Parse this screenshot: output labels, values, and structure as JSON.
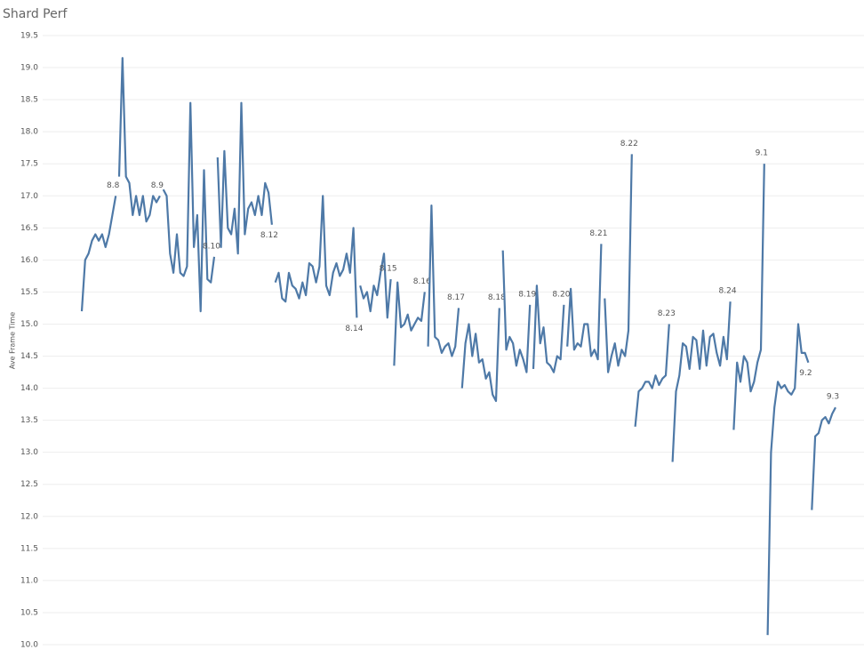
{
  "chart_data": {
    "type": "line",
    "title": "Shard Perf",
    "y_label": "Ave Frame Time",
    "color": "#4e79a7",
    "grid": true,
    "ylim": [
      10,
      19.5
    ],
    "yticks": [
      {
        "value": 10,
        "label": "10.0"
      },
      10.5,
      {
        "value": 11,
        "label": "11.0"
      },
      11.5,
      {
        "value": 12,
        "label": "12.0"
      },
      12.5,
      {
        "value": 13,
        "label": "13.0"
      },
      13.5,
      {
        "value": 14,
        "label": "14.0"
      },
      14.5,
      {
        "value": 15,
        "label": "15.0"
      },
      15.5,
      {
        "value": 16,
        "label": "16.0"
      },
      16.5,
      {
        "value": 17,
        "label": "17.0"
      },
      17.5,
      {
        "value": 18,
        "label": "18.0"
      },
      18.5,
      {
        "value": 19,
        "label": "19.0"
      },
      19.5
    ],
    "series": [
      {
        "name": "8.8",
        "values": [
          15.2,
          16.0,
          16.1,
          16.3,
          16.4,
          16.3,
          16.4,
          16.2,
          16.4,
          16.7,
          17.0
        ]
      },
      {
        "name": "8.9",
        "values": [
          17.3,
          19.15,
          17.3,
          17.2,
          16.7,
          17.0,
          16.7,
          17.0,
          16.6,
          16.7,
          17.0,
          16.9,
          17.0
        ]
      },
      {
        "name": "8.10",
        "values": [
          17.1,
          17.0,
          16.1,
          15.8,
          16.4,
          15.8,
          15.75,
          15.9,
          18.45,
          16.2,
          16.7,
          15.2,
          17.4,
          15.7,
          15.65,
          16.05
        ]
      },
      {
        "name": "8.12",
        "values": [
          17.6,
          16.2,
          17.7,
          16.5,
          16.4,
          16.8,
          16.1,
          18.45,
          16.4,
          16.8,
          16.9,
          16.7,
          17.0,
          16.7,
          17.2,
          17.05,
          16.55
        ]
      },
      {
        "name": "8.14",
        "values": [
          15.65,
          15.8,
          15.4,
          15.35,
          15.8,
          15.6,
          15.55,
          15.4,
          15.65,
          15.45,
          15.95,
          15.9,
          15.65,
          15.9,
          17.0,
          15.6,
          15.45,
          15.8,
          15.95,
          15.75,
          15.85,
          16.1,
          15.8,
          16.5,
          15.1
        ]
      },
      {
        "name": "8.15",
        "values": [
          15.6,
          15.4,
          15.5,
          15.2,
          15.6,
          15.45,
          15.8,
          16.1,
          15.1,
          15.7
        ]
      },
      {
        "name": "8.16",
        "values": [
          14.35,
          15.65,
          14.95,
          15.0,
          15.15,
          14.9,
          15.0,
          15.1,
          15.05,
          15.5
        ]
      },
      {
        "name": "8.17",
        "values": [
          14.65,
          16.85,
          14.8,
          14.75,
          14.55,
          14.65,
          14.7,
          14.5,
          14.65,
          15.25
        ]
      },
      {
        "name": "8.18",
        "values": [
          14.0,
          14.7,
          15.0,
          14.5,
          14.85,
          14.4,
          14.45,
          14.15,
          14.25,
          13.9,
          13.8,
          15.25
        ]
      },
      {
        "name": "8.19",
        "values": [
          16.15,
          14.6,
          14.8,
          14.7,
          14.35,
          14.6,
          14.45,
          14.25,
          15.3
        ]
      },
      {
        "name": "8.20",
        "values": [
          14.3,
          15.6,
          14.7,
          14.95,
          14.4,
          14.35,
          14.25,
          14.5,
          14.45,
          15.3
        ]
      },
      {
        "name": "8.21",
        "values": [
          14.65,
          15.55,
          14.6,
          14.7,
          14.65,
          15.0,
          15.0,
          14.5,
          14.6,
          14.45,
          16.25
        ]
      },
      {
        "name": "8.22",
        "values": [
          15.4,
          14.25,
          14.5,
          14.7,
          14.35,
          14.6,
          14.5,
          14.9,
          17.65
        ]
      },
      {
        "name": "8.23",
        "values": [
          13.4,
          13.95,
          14.0,
          14.1,
          14.1,
          14.0,
          14.2,
          14.05,
          14.15,
          14.2,
          15.0
        ]
      },
      {
        "name": "8.24",
        "values": [
          12.85,
          13.95,
          14.2,
          14.7,
          14.65,
          14.3,
          14.8,
          14.75,
          14.3,
          14.9,
          14.35,
          14.8,
          14.85,
          14.55,
          14.35,
          14.8,
          14.45,
          15.35
        ]
      },
      {
        "name": "9.1",
        "values": [
          13.35,
          14.4,
          14.1,
          14.5,
          14.4,
          13.95,
          14.1,
          14.4,
          14.6,
          17.5
        ]
      },
      {
        "name": "9.2",
        "values": [
          10.15,
          13.0,
          13.7,
          14.1,
          14.0,
          14.05,
          13.95,
          13.9,
          14.0,
          15.0,
          14.55,
          14.55,
          14.4
        ]
      },
      {
        "name": "9.3",
        "values": [
          12.1,
          13.25,
          13.3,
          13.5,
          13.55,
          13.45,
          13.6,
          13.7
        ]
      }
    ]
  }
}
